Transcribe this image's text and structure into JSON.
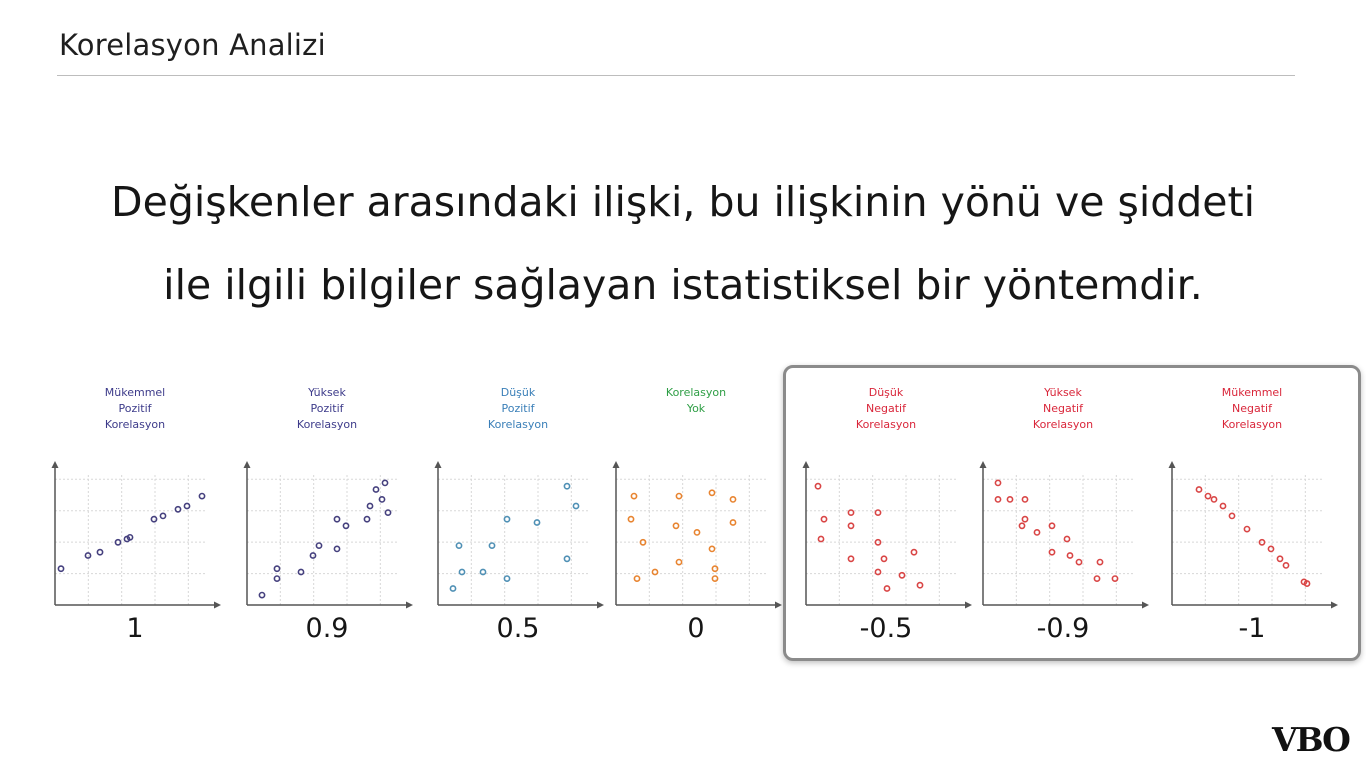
{
  "slide": {
    "title": "Korelasyon Analizi",
    "body_line1": "Değişkenler arasındaki ilişki, bu ilişkinin yönü ve şiddeti",
    "body_line2": "ile ilgili bilgiler sağlayan istatistiksel bir yöntemdir.",
    "logo_text": "VBO"
  },
  "chart_data": [
    {
      "type": "scatter",
      "title": [
        "Mükemmel",
        "Pozitif",
        "Korelasyon"
      ],
      "value_label": "1",
      "title_color": "#3d3b8a",
      "point_color": "#45407e",
      "xlim": [
        0,
        5
      ],
      "ylim": [
        0,
        4
      ],
      "grid": true,
      "points": [
        [
          0.2,
          1.1
        ],
        [
          1.1,
          1.5
        ],
        [
          1.5,
          1.6
        ],
        [
          2.1,
          1.9
        ],
        [
          2.4,
          2.0
        ],
        [
          2.5,
          2.05
        ],
        [
          3.3,
          2.6
        ],
        [
          3.6,
          2.7
        ],
        [
          4.1,
          2.9
        ],
        [
          4.4,
          3.0
        ],
        [
          4.9,
          3.3
        ]
      ]
    },
    {
      "type": "scatter",
      "title": [
        "Yüksek",
        "Pozitif",
        "Korelasyon"
      ],
      "value_label": "0.9",
      "title_color": "#3d3b8a",
      "point_color": "#45407e",
      "xlim": [
        0,
        5
      ],
      "ylim": [
        0,
        4
      ],
      "grid": true,
      "points": [
        [
          0.5,
          0.3
        ],
        [
          1.0,
          0.8
        ],
        [
          1.0,
          1.1
        ],
        [
          1.8,
          1.0
        ],
        [
          2.2,
          1.5
        ],
        [
          2.4,
          1.8
        ],
        [
          3.0,
          1.7
        ],
        [
          3.0,
          2.6
        ],
        [
          3.3,
          2.4
        ],
        [
          4.0,
          2.6
        ],
        [
          4.1,
          3.0
        ],
        [
          4.3,
          3.5
        ],
        [
          4.5,
          3.2
        ],
        [
          4.6,
          3.7
        ],
        [
          4.7,
          2.8
        ]
      ]
    },
    {
      "type": "scatter",
      "title": [
        "Düşük",
        "Pozitif",
        "Korelasyon"
      ],
      "value_label": "0.5",
      "title_color": "#3a7fb8",
      "point_color": "#4f90b5",
      "xlim": [
        0,
        5
      ],
      "ylim": [
        0,
        4
      ],
      "grid": true,
      "points": [
        [
          0.5,
          0.5
        ],
        [
          0.7,
          1.8
        ],
        [
          0.8,
          1.0
        ],
        [
          1.5,
          1.0
        ],
        [
          1.8,
          1.8
        ],
        [
          2.3,
          2.6
        ],
        [
          2.3,
          0.8
        ],
        [
          3.3,
          2.5
        ],
        [
          4.3,
          3.6
        ],
        [
          4.3,
          1.4
        ],
        [
          4.6,
          3.0
        ]
      ]
    },
    {
      "type": "scatter",
      "title": [
        "Korelasyon",
        "Yok"
      ],
      "value_label": "0",
      "title_color": "#2e9e45",
      "point_color": "#e88430",
      "xlim": [
        0,
        5
      ],
      "ylim": [
        0,
        4
      ],
      "grid": true,
      "points": [
        [
          0.6,
          3.3
        ],
        [
          0.5,
          2.6
        ],
        [
          0.9,
          1.9
        ],
        [
          0.7,
          0.8
        ],
        [
          1.3,
          1.0
        ],
        [
          2.1,
          3.3
        ],
        [
          2.1,
          1.3
        ],
        [
          2.0,
          2.4
        ],
        [
          2.7,
          2.2
        ],
        [
          3.2,
          3.4
        ],
        [
          3.2,
          1.7
        ],
        [
          3.3,
          0.8
        ],
        [
          3.3,
          1.1
        ],
        [
          3.9,
          3.2
        ],
        [
          3.9,
          2.5
        ]
      ]
    },
    {
      "type": "scatter",
      "title": [
        "Düşük",
        "Negatif",
        "Korelasyon"
      ],
      "value_label": "-0.5",
      "title_color": "#d9263a",
      "point_color": "#d94545",
      "xlim": [
        0,
        5
      ],
      "ylim": [
        0,
        4
      ],
      "grid": true,
      "points": [
        [
          0.4,
          3.6
        ],
        [
          0.6,
          2.6
        ],
        [
          0.5,
          2.0
        ],
        [
          1.5,
          2.8
        ],
        [
          1.5,
          2.4
        ],
        [
          1.5,
          1.4
        ],
        [
          2.4,
          2.8
        ],
        [
          2.4,
          1.9
        ],
        [
          2.6,
          1.4
        ],
        [
          2.4,
          1.0
        ],
        [
          2.7,
          0.5
        ],
        [
          3.2,
          0.9
        ],
        [
          3.6,
          1.6
        ],
        [
          3.8,
          0.6
        ]
      ]
    },
    {
      "type": "scatter",
      "title": [
        "Yüksek",
        "Negatif",
        "Korelasyon"
      ],
      "value_label": "-0.9",
      "title_color": "#d9263a",
      "point_color": "#d94545",
      "xlim": [
        0,
        5
      ],
      "ylim": [
        0,
        4
      ],
      "grid": true,
      "points": [
        [
          0.5,
          3.7
        ],
        [
          0.5,
          3.2
        ],
        [
          0.9,
          3.2
        ],
        [
          1.4,
          3.2
        ],
        [
          1.4,
          2.6
        ],
        [
          1.3,
          2.4
        ],
        [
          1.8,
          2.2
        ],
        [
          2.3,
          2.4
        ],
        [
          2.3,
          1.6
        ],
        [
          2.8,
          2.0
        ],
        [
          2.9,
          1.5
        ],
        [
          3.2,
          1.3
        ],
        [
          3.9,
          1.3
        ],
        [
          3.8,
          0.8
        ],
        [
          4.4,
          0.8
        ]
      ]
    },
    {
      "type": "scatter",
      "title": [
        "Mükemmel",
        "Negatif",
        "Korelasyon"
      ],
      "value_label": "-1",
      "title_color": "#d9263a",
      "point_color": "#d94545",
      "xlim": [
        0,
        5
      ],
      "ylim": [
        0,
        4
      ],
      "grid": true,
      "points": [
        [
          0.9,
          3.5
        ],
        [
          1.2,
          3.3
        ],
        [
          1.4,
          3.2
        ],
        [
          1.7,
          3.0
        ],
        [
          2.0,
          2.7
        ],
        [
          2.5,
          2.3
        ],
        [
          3.0,
          1.9
        ],
        [
          3.3,
          1.7
        ],
        [
          3.6,
          1.4
        ],
        [
          3.8,
          1.2
        ],
        [
          4.4,
          0.7
        ],
        [
          4.5,
          0.65
        ]
      ]
    }
  ]
}
